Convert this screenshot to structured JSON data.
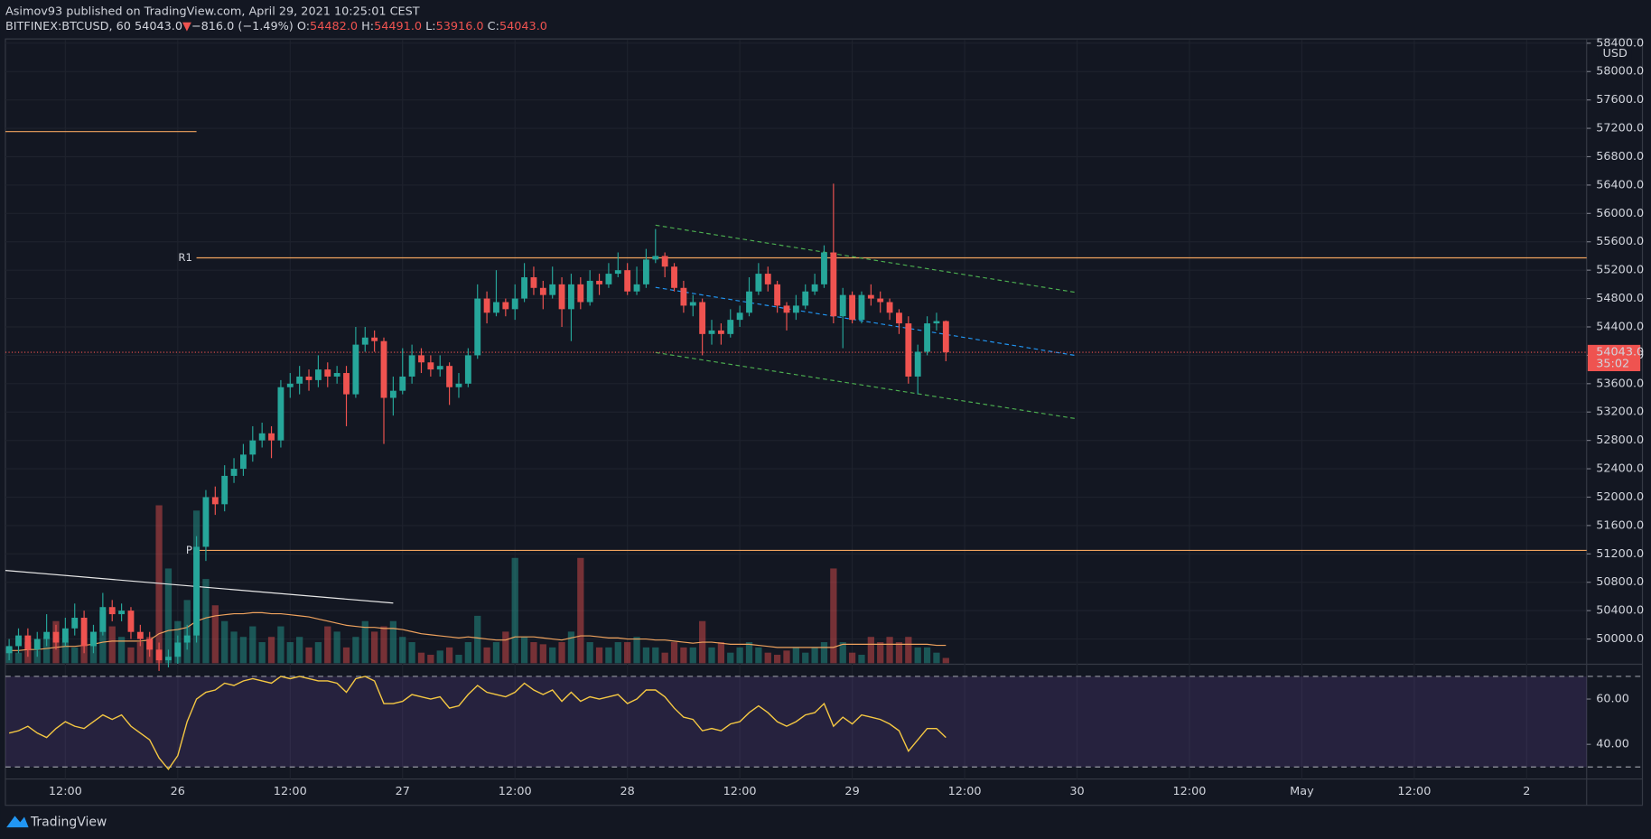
{
  "header": {
    "publisher": "Asimov93 published on TradingView.com, April 29, 2021 10:25:01 CEST",
    "symbol": "BITFINEX:BTCUSD, 60",
    "last": "54043.0",
    "change_arrow": "▼",
    "change": "−816.0 (−1.49%)",
    "o_label": "O:",
    "o_value": "54482.0",
    "h_label": "H:",
    "h_value": "54491.0",
    "l_label": "L:",
    "l_value": "53916.0",
    "c_label": "C:",
    "c_value": "54043.0"
  },
  "footer": {
    "brand": "TradingView"
  },
  "chart_data": {
    "type": "candlestick",
    "currency": "USD",
    "up_color": "#26a69a",
    "down_color": "#ef5350",
    "volume_colors": [
      "rgba(38,166,154,0.45)",
      "rgba(239,83,80,0.45)"
    ],
    "x": [
      "2021-04-25T06:00",
      "2021-04-25T07:00",
      "2021-04-25T08:00",
      "2021-04-25T09:00",
      "2021-04-25T10:00",
      "2021-04-25T11:00",
      "2021-04-25T12:00",
      "2021-04-25T13:00",
      "2021-04-25T14:00",
      "2021-04-25T15:00",
      "2021-04-25T16:00",
      "2021-04-25T17:00",
      "2021-04-25T18:00",
      "2021-04-25T19:00",
      "2021-04-25T20:00",
      "2021-04-25T21:00",
      "2021-04-25T22:00",
      "2021-04-25T23:00",
      "2021-04-26T00:00",
      "2021-04-26T01:00",
      "2021-04-26T02:00",
      "2021-04-26T03:00",
      "2021-04-26T04:00",
      "2021-04-26T05:00",
      "2021-04-26T06:00",
      "2021-04-26T07:00",
      "2021-04-26T08:00",
      "2021-04-26T09:00",
      "2021-04-26T10:00",
      "2021-04-26T11:00",
      "2021-04-26T12:00",
      "2021-04-26T13:00",
      "2021-04-26T14:00",
      "2021-04-26T15:00",
      "2021-04-26T16:00",
      "2021-04-26T17:00",
      "2021-04-26T18:00",
      "2021-04-26T19:00",
      "2021-04-26T20:00",
      "2021-04-26T21:00",
      "2021-04-26T22:00",
      "2021-04-26T23:00",
      "2021-04-27T00:00",
      "2021-04-27T01:00",
      "2021-04-27T02:00",
      "2021-04-27T03:00",
      "2021-04-27T04:00",
      "2021-04-27T05:00",
      "2021-04-27T06:00",
      "2021-04-27T07:00",
      "2021-04-27T08:00",
      "2021-04-27T09:00",
      "2021-04-27T10:00",
      "2021-04-27T11:00",
      "2021-04-27T12:00",
      "2021-04-27T13:00",
      "2021-04-27T14:00",
      "2021-04-27T15:00",
      "2021-04-27T16:00",
      "2021-04-27T17:00",
      "2021-04-27T18:00",
      "2021-04-27T19:00",
      "2021-04-27T20:00",
      "2021-04-27T21:00",
      "2021-04-27T22:00",
      "2021-04-27T23:00",
      "2021-04-28T00:00",
      "2021-04-28T01:00",
      "2021-04-28T02:00",
      "2021-04-28T03:00",
      "2021-04-28T04:00",
      "2021-04-28T05:00",
      "2021-04-28T06:00",
      "2021-04-28T07:00",
      "2021-04-28T08:00",
      "2021-04-28T09:00",
      "2021-04-28T10:00",
      "2021-04-28T11:00",
      "2021-04-28T12:00",
      "2021-04-28T13:00",
      "2021-04-28T14:00",
      "2021-04-28T15:00",
      "2021-04-28T16:00",
      "2021-04-28T17:00",
      "2021-04-28T18:00",
      "2021-04-28T19:00",
      "2021-04-28T20:00",
      "2021-04-28T21:00",
      "2021-04-28T22:00",
      "2021-04-28T23:00",
      "2021-04-29T00:00",
      "2021-04-29T01:00",
      "2021-04-29T02:00",
      "2021-04-29T03:00",
      "2021-04-29T04:00",
      "2021-04-29T05:00",
      "2021-04-29T06:00",
      "2021-04-29T07:00",
      "2021-04-29T08:00",
      "2021-04-29T09:00",
      "2021-04-29T10:00"
    ],
    "open": [
      49800,
      49900,
      50050,
      49850,
      50000,
      50100,
      49950,
      50150,
      50300,
      49900,
      50100,
      50450,
      50350,
      50400,
      50100,
      50000,
      49850,
      49700,
      49750,
      49950,
      50050,
      51300,
      52000,
      51900,
      52300,
      52400,
      52600,
      52800,
      52900,
      52800,
      53550,
      53600,
      53700,
      53650,
      53800,
      53700,
      53750,
      53450,
      54150,
      54250,
      54200,
      53400,
      53500,
      53700,
      54000,
      53900,
      53800,
      53850,
      53550,
      53600,
      54000,
      54800,
      54600,
      54750,
      54650,
      54800,
      55100,
      54950,
      54850,
      55000,
      54650,
      55000,
      54750,
      55050,
      55000,
      55150,
      55200,
      54900,
      55000,
      55350,
      55400,
      55250,
      54950,
      54700,
      54750,
      54300,
      54350,
      54300,
      54500,
      54600,
      54900,
      55150,
      55000,
      54700,
      54600,
      54700,
      54900,
      55000,
      55450,
      54550,
      54850,
      54500,
      54850,
      54800,
      54750,
      54600,
      54450,
      53700,
      54050,
      54450,
      54482
    ],
    "high": [
      50000,
      50150,
      50150,
      50100,
      50350,
      50200,
      50300,
      50500,
      50400,
      50200,
      50650,
      50550,
      50500,
      50450,
      50200,
      50100,
      49950,
      49850,
      50050,
      50200,
      51450,
      52100,
      52150,
      52450,
      52550,
      52750,
      53000,
      53050,
      53000,
      53650,
      53750,
      53850,
      53800,
      54000,
      53900,
      53850,
      53850,
      54400,
      54400,
      54350,
      54250,
      53700,
      54100,
      54150,
      54100,
      54000,
      54000,
      53900,
      53750,
      54100,
      55000,
      54900,
      55200,
      54800,
      55000,
      55300,
      55250,
      55050,
      55250,
      55100,
      55150,
      55100,
      55200,
      55150,
      55300,
      55450,
      55300,
      55250,
      55500,
      55780,
      55450,
      55300,
      55050,
      54850,
      54800,
      54500,
      54450,
      54650,
      54700,
      55100,
      55300,
      55250,
      55050,
      54750,
      54850,
      55000,
      55150,
      55550,
      56420,
      54950,
      54900,
      54900,
      55000,
      54900,
      54800,
      54650,
      54550,
      54150,
      54550,
      54600,
      54491
    ],
    "low": [
      49700,
      49800,
      49750,
      49750,
      49900,
      49850,
      49900,
      50050,
      49800,
      49800,
      50050,
      50250,
      50250,
      50000,
      49900,
      49750,
      49550,
      49600,
      49650,
      49850,
      49950,
      51100,
      51750,
      51800,
      52200,
      52300,
      52500,
      52700,
      52550,
      52700,
      53400,
      53450,
      53500,
      53550,
      53550,
      53600,
      53000,
      53400,
      54050,
      54050,
      52750,
      53150,
      53450,
      53600,
      53750,
      53700,
      53700,
      53300,
      53400,
      53550,
      53950,
      54450,
      54550,
      54550,
      54500,
      54750,
      54850,
      54650,
      54800,
      54400,
      54200,
      54650,
      54700,
      54850,
      54950,
      55100,
      54850,
      54850,
      54950,
      55300,
      55100,
      54900,
      54600,
      54550,
      54000,
      54150,
      54150,
      54250,
      54400,
      54550,
      54850,
      54900,
      54600,
      54350,
      54500,
      54650,
      54850,
      54950,
      54450,
      54100,
      54450,
      54450,
      54700,
      54600,
      54500,
      54300,
      53600,
      53450,
      54000,
      54350,
      53916
    ],
    "close": [
      49900,
      50050,
      49850,
      50000,
      50100,
      49950,
      50150,
      50300,
      49900,
      50100,
      50450,
      50350,
      50400,
      50100,
      50000,
      49850,
      49700,
      49750,
      49950,
      50050,
      51300,
      52000,
      51900,
      52300,
      52400,
      52600,
      52800,
      52900,
      52800,
      53550,
      53600,
      53700,
      53650,
      53800,
      53700,
      53750,
      53450,
      54150,
      54250,
      54200,
      53400,
      53500,
      53700,
      54000,
      53900,
      53800,
      53850,
      53550,
      53600,
      54000,
      54800,
      54600,
      54750,
      54650,
      54800,
      55100,
      54950,
      54850,
      55000,
      54650,
      55000,
      54750,
      55050,
      55000,
      55150,
      55200,
      54900,
      55000,
      55350,
      55400,
      55250,
      54950,
      54700,
      54750,
      54300,
      54350,
      54300,
      54500,
      54600,
      54900,
      55150,
      55000,
      54700,
      54600,
      54700,
      54900,
      55000,
      55450,
      54550,
      54850,
      54500,
      54850,
      54800,
      54750,
      54600,
      54450,
      53700,
      54050,
      54450,
      54482,
      54043
    ],
    "volume": [
      15,
      10,
      20,
      12,
      25,
      40,
      20,
      15,
      18,
      30,
      50,
      35,
      25,
      15,
      20,
      25,
      150,
      90,
      40,
      60,
      145,
      80,
      55,
      40,
      30,
      25,
      35,
      20,
      25,
      35,
      20,
      25,
      15,
      20,
      35,
      30,
      15,
      25,
      40,
      30,
      35,
      40,
      25,
      20,
      10,
      8,
      12,
      15,
      8,
      20,
      45,
      15,
      20,
      30,
      100,
      25,
      20,
      18,
      15,
      20,
      30,
      100,
      20,
      15,
      15,
      20,
      20,
      25,
      15,
      15,
      10,
      20,
      15,
      15,
      40,
      15,
      20,
      10,
      15,
      20,
      15,
      10,
      8,
      12,
      15,
      10,
      15,
      20,
      90,
      20,
      10,
      8,
      25,
      20,
      25,
      20,
      25,
      15,
      15,
      10,
      5
    ],
    "volume_ylim": [
      0,
      250
    ],
    "volume_ma": {
      "color": "#f0a35e",
      "values": [
        12,
        12,
        13,
        13,
        14,
        15,
        16,
        16,
        17,
        18,
        20,
        21,
        21,
        21,
        21,
        22,
        28,
        31,
        32,
        34,
        40,
        43,
        45,
        46,
        47,
        47,
        48,
        48,
        47,
        47,
        46,
        45,
        44,
        42,
        40,
        38,
        36,
        35,
        34,
        34,
        33,
        33,
        32,
        30,
        28,
        27,
        26,
        25,
        24,
        25,
        24,
        23,
        22,
        22,
        25,
        25,
        25,
        24,
        23,
        22,
        24,
        26,
        26,
        25,
        24,
        24,
        23,
        23,
        23,
        22,
        22,
        21,
        20,
        19,
        20,
        20,
        19,
        18,
        18,
        18,
        17,
        16,
        15,
        15,
        15,
        15,
        15,
        15,
        15,
        18,
        18,
        18,
        18,
        18,
        18,
        18,
        18,
        18,
        18,
        17,
        17
      ]
    },
    "xlim": [
      "2021-04-25T05:36",
      "2021-05-02T06:24"
    ],
    "xticks": [
      {
        "value": "2021-04-25T12:00",
        "label": "12:00"
      },
      {
        "value": "2021-04-26T00:00",
        "label": "26"
      },
      {
        "value": "2021-04-26T12:00",
        "label": "12:00"
      },
      {
        "value": "2021-04-27T00:00",
        "label": "27"
      },
      {
        "value": "2021-04-27T12:00",
        "label": "12:00"
      },
      {
        "value": "2021-04-28T00:00",
        "label": "28"
      },
      {
        "value": "2021-04-28T12:00",
        "label": "12:00"
      },
      {
        "value": "2021-04-29T00:00",
        "label": "29"
      },
      {
        "value": "2021-04-29T12:00",
        "label": "12:00"
      },
      {
        "value": "2021-04-30T00:00",
        "label": "30"
      },
      {
        "value": "2021-04-30T12:00",
        "label": "12:00"
      },
      {
        "value": "2021-05-01T00:00",
        "label": "May"
      },
      {
        "value": "2021-05-01T12:00",
        "label": "12:00"
      },
      {
        "value": "2021-05-02T00:00",
        "label": "2"
      }
    ],
    "ylim": [
      49659,
      58445
    ],
    "yticks": [
      {
        "value": 50000,
        "label": "50000.0"
      },
      {
        "value": 50400,
        "label": "50400.0"
      },
      {
        "value": 50800,
        "label": "50800.0"
      },
      {
        "value": 51200,
        "label": "51200.0"
      },
      {
        "value": 51600,
        "label": "51600.0"
      },
      {
        "value": 52000,
        "label": "52000.0"
      },
      {
        "value": 52400,
        "label": "52400.0"
      },
      {
        "value": 52800,
        "label": "52800.0"
      },
      {
        "value": 53200,
        "label": "53200.0"
      },
      {
        "value": 53600,
        "label": "53600.0"
      },
      {
        "value": 54000,
        "label": "54000.0"
      },
      {
        "value": 54400,
        "label": "54400.0"
      },
      {
        "value": 54800,
        "label": "54800.0"
      },
      {
        "value": 55200,
        "label": "55200.0"
      },
      {
        "value": 55600,
        "label": "55600.0"
      },
      {
        "value": 56000,
        "label": "56000.0"
      },
      {
        "value": 56400,
        "label": "56400.0"
      },
      {
        "value": 56800,
        "label": "56800.0"
      },
      {
        "value": 57200,
        "label": "57200.0"
      },
      {
        "value": 57600,
        "label": "57600.0"
      },
      {
        "value": 58000,
        "label": "58000.0"
      },
      {
        "value": 58400,
        "label": "58400.0"
      }
    ],
    "grid": true,
    "price_label": {
      "value": 54043,
      "label": "54043.0",
      "countdown": "35:02"
    },
    "drawings": [
      {
        "color": "#f0a35e",
        "dash": false,
        "x": [
          "2021-04-26T02:00",
          "2021-05-02T06:24"
        ],
        "y": [
          55374,
          55374
        ],
        "label": "R1"
      },
      {
        "color": "#f0a35e",
        "dash": false,
        "x": [
          "2021-04-26T02:00",
          "2021-05-02T06:24"
        ],
        "y": [
          51249,
          51249
        ],
        "label": "P"
      },
      {
        "color": "#f0a35e",
        "dash": false,
        "x": [
          "2021-04-25T05:36",
          "2021-04-26T02:00"
        ],
        "y": [
          57154,
          57154
        ]
      },
      {
        "color": "#e8e8e8",
        "dash": false,
        "x": [
          "2021-04-25T05:36",
          "2021-04-26T23:00"
        ],
        "y": [
          50967,
          50507
        ]
      },
      {
        "color": "#4caf50",
        "dash": true,
        "x": [
          "2021-04-28T03:00",
          "2021-04-30T00:00"
        ],
        "y": [
          55834,
          54884
        ]
      },
      {
        "color": "#4caf50",
        "dash": true,
        "x": [
          "2021-04-28T03:00",
          "2021-04-30T00:00"
        ],
        "y": [
          54039,
          53104
        ]
      },
      {
        "color": "#2196f3",
        "dash": true,
        "x": [
          "2021-04-28T03:00",
          "2021-04-30T00:00"
        ],
        "y": [
          54958,
          53994
        ]
      }
    ],
    "rsi": {
      "color": "#f5c842",
      "values": [
        45,
        46,
        48,
        45,
        43,
        47,
        50,
        48,
        47,
        50,
        53,
        51,
        53,
        48,
        45,
        42,
        34,
        29,
        35,
        50,
        60,
        63,
        64,
        67,
        66,
        68,
        69,
        68,
        67,
        70,
        69,
        70,
        69,
        68,
        68,
        67,
        63,
        69,
        70,
        68,
        58,
        58,
        59,
        62,
        61,
        60,
        61,
        56,
        57,
        62,
        66,
        63,
        62,
        61,
        63,
        67,
        64,
        62,
        64,
        59,
        63,
        59,
        61,
        60,
        61,
        62,
        58,
        60,
        64,
        64,
        61,
        56,
        52,
        51,
        46,
        47,
        46,
        49,
        50,
        54,
        57,
        54,
        50,
        48,
        50,
        53,
        54,
        58,
        48,
        52,
        49,
        53,
        52,
        51,
        49,
        46,
        37,
        42,
        47,
        47,
        43
      ],
      "ylim": [
        24.7,
        74.9
      ],
      "yticks": [
        {
          "value": 40,
          "label": "40.00"
        },
        {
          "value": 60,
          "label": "60.00"
        }
      ],
      "bands": [
        30,
        70
      ],
      "band_fill": "rgba(126,87,194,0.18)"
    }
  }
}
